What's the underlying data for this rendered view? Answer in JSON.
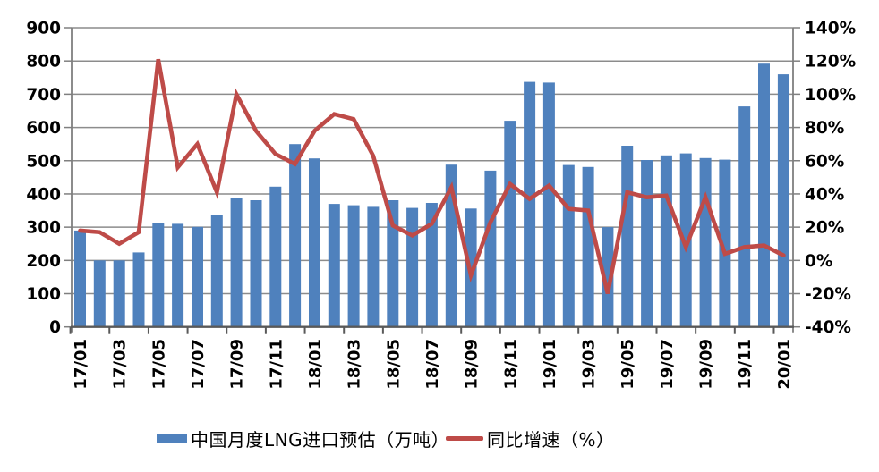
{
  "chart_data": {
    "type": "bar",
    "title": "",
    "categories": [
      "17/01",
      "17/02",
      "17/03",
      "17/04",
      "17/05",
      "17/06",
      "17/07",
      "17/08",
      "17/09",
      "17/10",
      "17/11",
      "17/12",
      "18/01",
      "18/02",
      "18/03",
      "18/04",
      "18/05",
      "18/06",
      "18/07",
      "18/08",
      "18/09",
      "18/10",
      "18/11",
      "18/12",
      "19/01",
      "19/02",
      "19/03",
      "19/04",
      "19/05",
      "19/06",
      "19/07",
      "19/08",
      "19/09",
      "19/10",
      "19/11",
      "19/12",
      "20/01"
    ],
    "series": [
      {
        "name": "中国月度LNG进口预估（万吨）",
        "type": "bar",
        "axis": "left",
        "color": "#4F81BD",
        "values": [
          290,
          200,
          200,
          224,
          311,
          310,
          301,
          338,
          388,
          381,
          422,
          550,
          507,
          370,
          366,
          361,
          381,
          358,
          373,
          488,
          356,
          470,
          620,
          737,
          735,
          487,
          481,
          300,
          545,
          502,
          516,
          522,
          508,
          503,
          663,
          792,
          760
        ]
      },
      {
        "name": "同比增速（%）",
        "type": "line",
        "axis": "right",
        "color": "#BE4B48",
        "values": [
          18,
          17,
          10,
          17,
          121,
          56,
          70,
          41,
          100,
          78,
          64,
          58,
          78,
          88,
          85,
          63,
          21,
          15,
          22,
          44,
          -9,
          23,
          46,
          37,
          45,
          31,
          30,
          -20,
          41,
          38,
          39,
          8,
          38,
          4,
          8,
          9,
          3
        ]
      }
    ],
    "x_tick_labels": [
      "17/01",
      "17/03",
      "17/05",
      "17/07",
      "17/09",
      "17/11",
      "18/01",
      "18/03",
      "18/05",
      "18/07",
      "18/09",
      "18/11",
      "19/01",
      "19/03",
      "19/05",
      "19/07",
      "19/09",
      "19/11",
      "20/01"
    ],
    "left_axis": {
      "min": 0,
      "max": 900,
      "step": 100,
      "tick_labels": [
        "0",
        "100",
        "200",
        "300",
        "400",
        "500",
        "600",
        "700",
        "800",
        "900"
      ]
    },
    "right_axis": {
      "min": -40,
      "max": 140,
      "step": 20,
      "tick_labels": [
        "-40%",
        "-20%",
        "0%",
        "20%",
        "40%",
        "60%",
        "80%",
        "100%",
        "120%",
        "140%"
      ]
    },
    "grid": true,
    "legend_position": "bottom",
    "style": {
      "grid_color": "#8C8C8C",
      "axis_line_color": "#7F7F7F",
      "x_axis_line_color": "#595959",
      "text_color": "#000000",
      "bar_color": "#4F81BD",
      "line_color": "#BE4B48"
    }
  },
  "legend": {
    "items": [
      {
        "label": "中国月度LNG进口预估（万吨）",
        "swatch": "bar",
        "color": "#4F81BD"
      },
      {
        "label": "同比增速（%）",
        "swatch": "line",
        "color": "#BE4B48"
      }
    ]
  }
}
